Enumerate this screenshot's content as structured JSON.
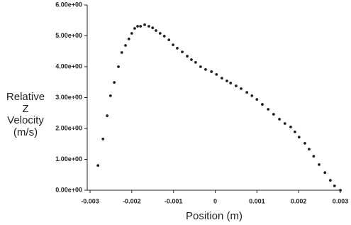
{
  "chart_data": {
    "type": "scatter",
    "xlabel": "Position (m)",
    "ylabel": [
      "Relative",
      "Z",
      "Velocity",
      "(m/s)"
    ],
    "x": [
      -0.00281,
      -0.00269,
      -0.00259,
      -0.00251,
      -0.00242,
      -0.00232,
      -0.00224,
      -0.00215,
      -0.00207,
      -0.002,
      -0.00193,
      -0.00186,
      -0.00179,
      -0.00169,
      -0.00159,
      -0.0015,
      -0.00142,
      -0.00132,
      -0.00122,
      -0.00111,
      -0.00101,
      -0.00091,
      -0.00079,
      -0.00067,
      -0.00057,
      -0.00047,
      -0.00035,
      -0.00023,
      -9e-05,
      3e-05,
      0.00016,
      0.00028,
      0.00037,
      0.0005,
      0.00062,
      0.00076,
      0.00088,
      0.001,
      0.00113,
      0.00127,
      0.0014,
      0.00154,
      0.00167,
      0.00181,
      0.00191,
      0.00201,
      0.00215,
      0.00225,
      0.00236,
      0.00249,
      0.00263,
      0.00276,
      0.00286,
      0.003
    ],
    "values": [
      0.8,
      1.66,
      2.41,
      3.06,
      3.49,
      4.0,
      4.46,
      4.69,
      4.9,
      5.08,
      5.24,
      5.31,
      5.31,
      5.36,
      5.31,
      5.26,
      5.17,
      5.08,
      4.99,
      4.87,
      4.71,
      4.6,
      4.48,
      4.34,
      4.23,
      4.14,
      4.0,
      3.91,
      3.84,
      3.75,
      3.63,
      3.54,
      3.47,
      3.38,
      3.29,
      3.17,
      3.06,
      2.94,
      2.78,
      2.62,
      2.46,
      2.3,
      2.16,
      2.05,
      1.89,
      1.72,
      1.52,
      1.33,
      1.1,
      0.83,
      0.57,
      0.32,
      0.14,
      0
    ],
    "color": "#222222",
    "xlim": [
      -0.003,
      0.003
    ],
    "xticks": [
      -0.003,
      -0.002,
      -0.001,
      0,
      0.001,
      0.002,
      0.003
    ],
    "ylim": [
      0,
      6
    ],
    "yticks": [
      {
        "value": 0,
        "label": "0.00e+00"
      },
      {
        "value": 1,
        "label": "1.00e+00"
      },
      {
        "value": 2,
        "label": "2.00e+00"
      },
      {
        "value": 3,
        "label": "3.00e+00"
      },
      {
        "value": 4,
        "label": "4.00e+00"
      },
      {
        "value": 5,
        "label": "5.00e+00"
      },
      {
        "value": 6,
        "label": "6.00e+00"
      }
    ],
    "grid": false
  }
}
